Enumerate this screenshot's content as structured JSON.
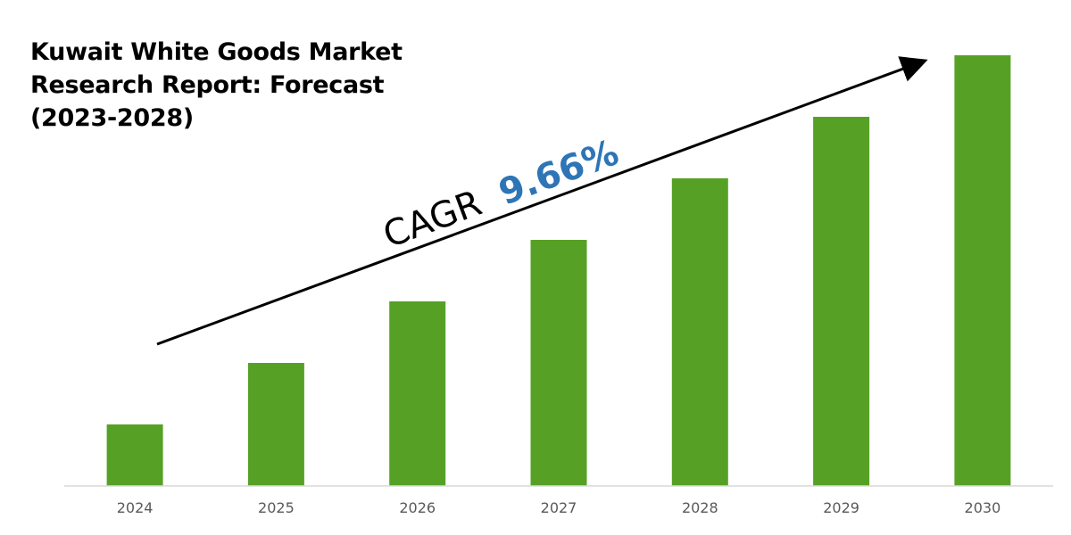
{
  "chart_data": {
    "type": "bar",
    "title": "Kuwait White Goods Market Research Report: Forecast (2023-2028)",
    "categories": [
      "2024",
      "2025",
      "2026",
      "2027",
      "2028",
      "2029",
      "2030"
    ],
    "values": [
      1.0,
      2.0,
      3.0,
      4.0,
      5.0,
      6.0,
      7.0
    ],
    "ylim": [
      0,
      7.0
    ],
    "xlabel": "",
    "ylabel": "",
    "grid": false,
    "legend": "none",
    "annotation": {
      "label": "CAGR",
      "value": "9.66%"
    },
    "colors": {
      "bar": "#56A125",
      "axis": "#D9D9D9",
      "tick_text": "#595959",
      "annotation_label": "#000000",
      "annotation_value": "#2E75B6",
      "arrow": "#000000"
    }
  }
}
